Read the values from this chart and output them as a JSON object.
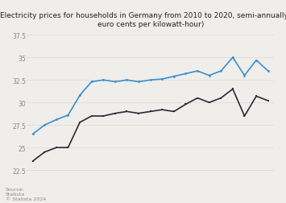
{
  "title_line1": "Electricity prices for households in Germany from 2010 to 2020, semi-annually (in",
  "title_line2": "euro cents per kilowatt-hour)",
  "ylabel": "Euro cents per kilowatt-hour",
  "source_text": "Source:\nStatista\n© Statista 2024",
  "ylim": [
    22.0,
    38.0
  ],
  "yticks": [
    22.5,
    25,
    27.5,
    30,
    32.5,
    35,
    37.5
  ],
  "ytick_labels": [
    "22.5",
    "25",
    "27.5",
    "30",
    "32.5",
    "35",
    "37.5"
  ],
  "blue_y": [
    26.5,
    27.5,
    28.1,
    28.6,
    30.8,
    32.3,
    32.5,
    32.3,
    32.5,
    32.3,
    32.5,
    32.6,
    32.9,
    33.2,
    33.5,
    33.0,
    33.5,
    35.0,
    33.0,
    34.7,
    33.5
  ],
  "dark_y": [
    23.5,
    24.5,
    25.0,
    25.0,
    27.8,
    28.5,
    28.5,
    28.8,
    29.0,
    28.8,
    29.0,
    29.2,
    29.0,
    29.8,
    30.5,
    30.0,
    30.5,
    31.5,
    28.5,
    30.7,
    30.2
  ],
  "blue_color": "#3a8fce",
  "dark_color": "#2a2a3a",
  "bg_color": "#f0eeeb",
  "grid_color": "#e0ddd9",
  "title_fontsize": 6.5,
  "tick_fontsize": 5.5,
  "source_fontsize": 4.5
}
